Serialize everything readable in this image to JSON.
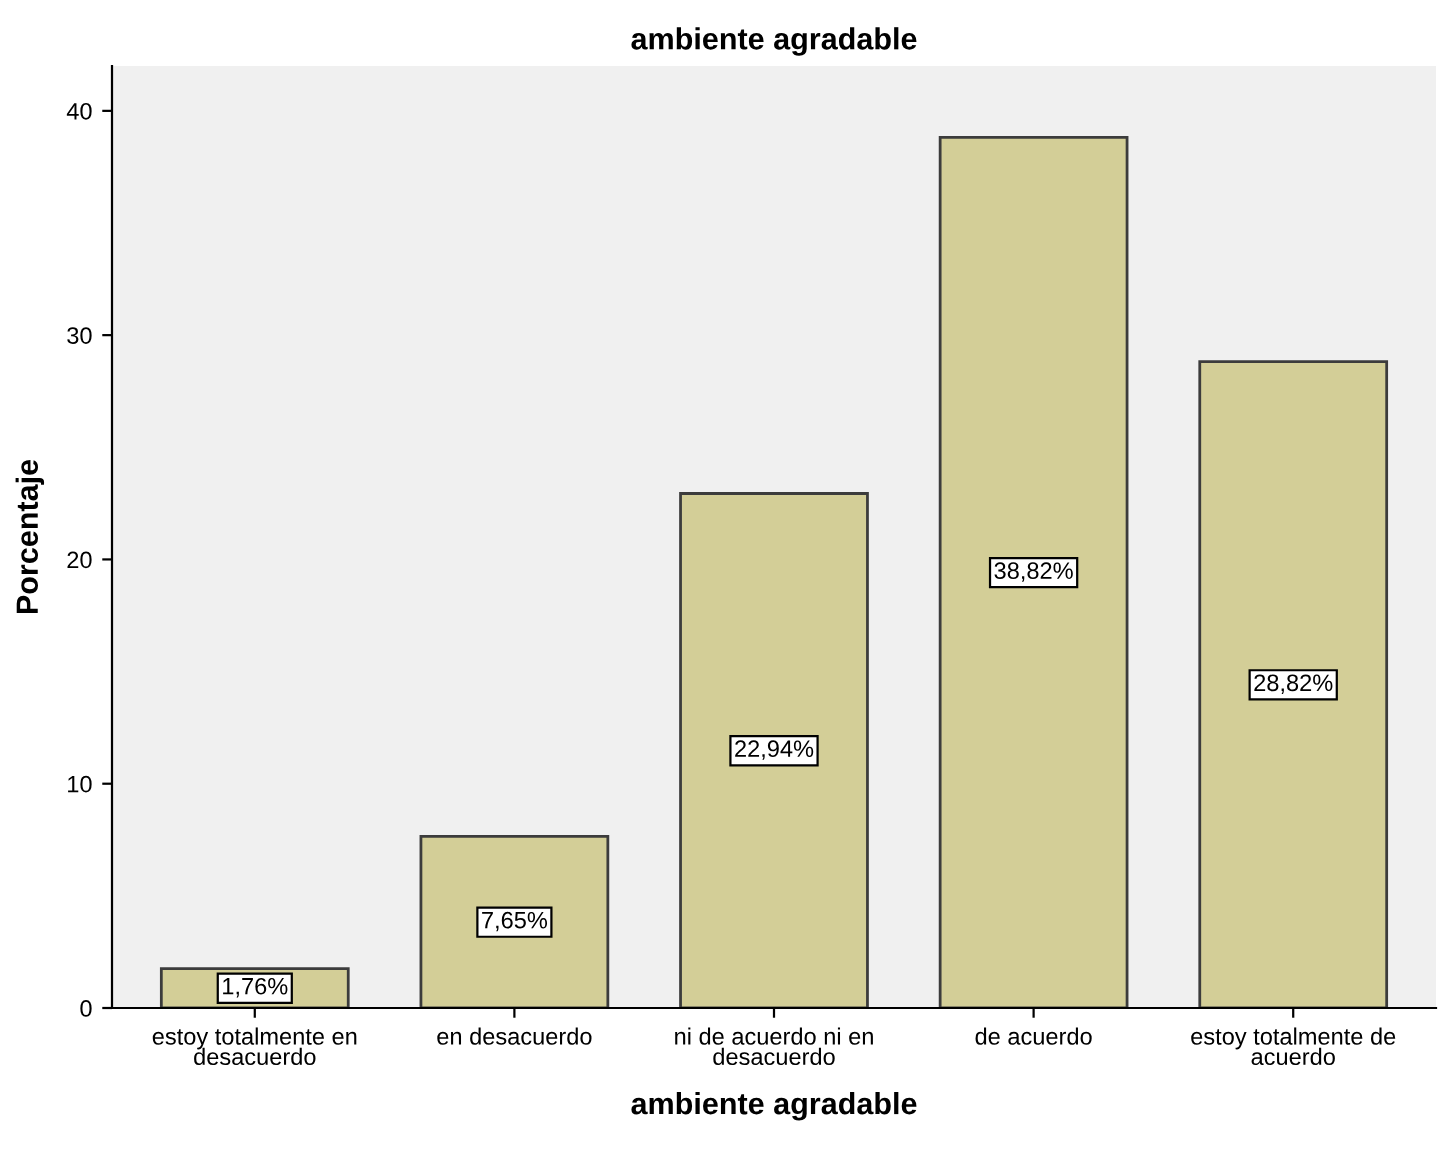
{
  "chart_data": {
    "type": "bar",
    "title": "ambiente agradable",
    "xlabel": "ambiente agradable",
    "ylabel": "Porcentaje",
    "categories": [
      "estoy totalmente en\ndesacuerdo",
      "en desacuerdo",
      "ni de acuerdo ni en\ndesacuerdo",
      "de acuerdo",
      "estoy totalmente de\nacuerdo"
    ],
    "values": [
      1.76,
      7.65,
      22.94,
      38.82,
      28.82
    ],
    "value_labels": [
      "1,76%",
      "7,65%",
      "22,94%",
      "38,82%",
      "28,82%"
    ],
    "color": "#d3ce97",
    "ylim": [
      0,
      42
    ],
    "yticks": [
      0,
      10,
      20,
      30,
      40
    ],
    "grid": false,
    "legend": false
  }
}
